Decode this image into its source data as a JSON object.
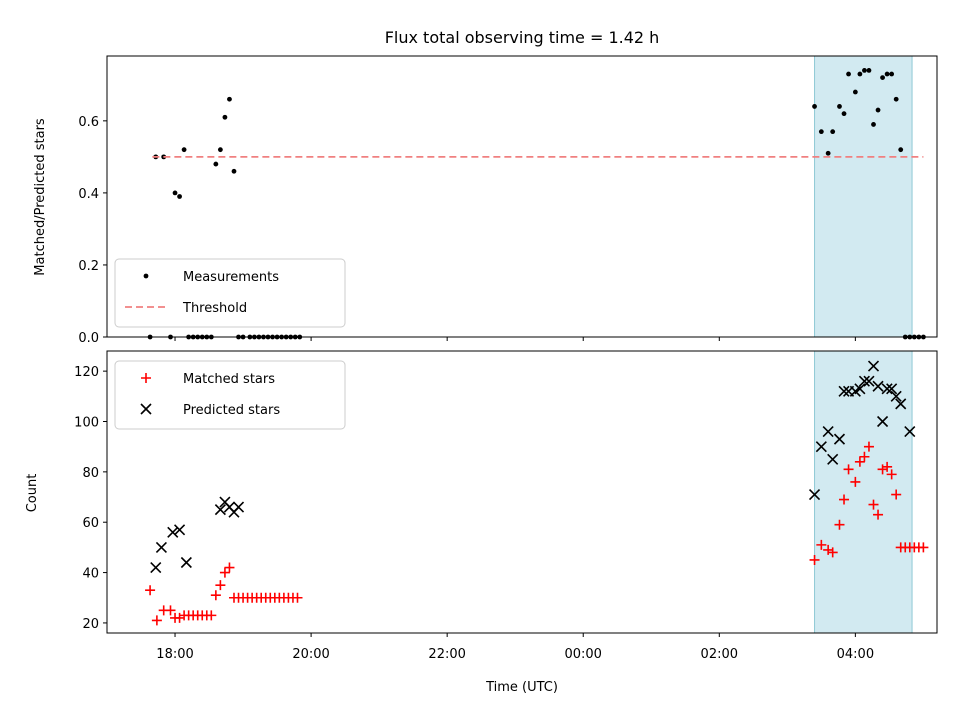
{
  "chart_data": [
    {
      "type": "scatter",
      "title": "Flux total observing time = 1.42 h",
      "ylabel": "Matched/Predicted stars",
      "xlabel": "",
      "ylim": [
        0,
        0.78
      ],
      "yticks": [
        0.0,
        0.2,
        0.4,
        0.6
      ],
      "ytick_labels": [
        "0.0",
        "0.2",
        "0.4",
        "0.6"
      ],
      "shaded_region": {
        "x": [
          "03:24",
          "04:50"
        ],
        "color": "#add8e6"
      },
      "legend": {
        "placement": "lower-left",
        "entries": [
          "Measurements",
          "Threshold"
        ]
      },
      "series": [
        {
          "name": "Measurements",
          "marker": "dot",
          "color": "#000000",
          "x": [
            "17:38",
            "17:43",
            "17:50",
            "17:56",
            "18:00",
            "18:04",
            "18:08",
            "18:12",
            "18:16",
            "18:20",
            "18:24",
            "18:28",
            "18:32",
            "18:36",
            "18:40",
            "18:44",
            "18:48",
            "18:52",
            "18:56",
            "19:00",
            "19:06",
            "19:10",
            "19:14",
            "19:18",
            "19:22",
            "19:26",
            "19:30",
            "19:34",
            "19:38",
            "19:42",
            "19:46",
            "19:50",
            "03:24",
            "03:30",
            "03:36",
            "03:40",
            "03:46",
            "03:50",
            "03:54",
            "04:00",
            "04:04",
            "04:08",
            "04:12",
            "04:16",
            "04:20",
            "04:24",
            "04:28",
            "04:32",
            "04:36",
            "04:40",
            "04:44",
            "04:48",
            "04:52",
            "04:56",
            "05:00"
          ],
          "y": [
            0.0,
            0.5,
            0.5,
            0.0,
            0.4,
            0.39,
            0.52,
            0.0,
            0.0,
            0.0,
            0.0,
            0.0,
            0.0,
            0.48,
            0.52,
            0.61,
            0.66,
            0.46,
            0.0,
            0.0,
            0.0,
            0.0,
            0.0,
            0.0,
            0.0,
            0.0,
            0.0,
            0.0,
            0.0,
            0.0,
            0.0,
            0.0,
            0.64,
            0.57,
            0.51,
            0.57,
            0.64,
            0.62,
            0.73,
            0.68,
            0.73,
            0.74,
            0.74,
            0.59,
            0.63,
            0.72,
            0.73,
            0.73,
            0.66,
            0.52,
            0.0,
            0.0,
            0.0,
            0.0,
            0.0
          ]
        },
        {
          "name": "Threshold",
          "line": "dashed",
          "color": "#f08080",
          "x": [
            "17:40",
            "05:00"
          ],
          "y": [
            0.5,
            0.5
          ]
        }
      ]
    },
    {
      "type": "scatter",
      "title": "",
      "ylabel": "Count",
      "xlabel": "Time (UTC)",
      "ylim": [
        16,
        128
      ],
      "yticks": [
        20,
        40,
        60,
        80,
        100,
        120
      ],
      "ytick_labels": [
        "20",
        "40",
        "60",
        "80",
        "100",
        "120"
      ],
      "xticks": [
        "18:00",
        "20:00",
        "22:00",
        "00:00",
        "02:00",
        "04:00"
      ],
      "shaded_region": {
        "x": [
          "03:24",
          "04:50"
        ],
        "color": "#add8e6"
      },
      "legend": {
        "placement": "upper-left",
        "entries": [
          "Matched stars",
          "Predicted stars"
        ]
      },
      "series": [
        {
          "name": "Matched stars",
          "marker": "plus",
          "color": "#ff0000",
          "x": [
            "17:38",
            "17:44",
            "17:50",
            "17:56",
            "18:00",
            "18:04",
            "18:08",
            "18:12",
            "18:16",
            "18:20",
            "18:24",
            "18:28",
            "18:32",
            "18:36",
            "18:40",
            "18:44",
            "18:48",
            "18:52",
            "18:56",
            "19:00",
            "19:04",
            "19:08",
            "19:12",
            "19:16",
            "19:20",
            "19:24",
            "19:28",
            "19:32",
            "19:36",
            "19:40",
            "19:44",
            "19:48",
            "03:24",
            "03:30",
            "03:36",
            "03:40",
            "03:46",
            "03:50",
            "03:54",
            "04:00",
            "04:04",
            "04:08",
            "04:12",
            "04:16",
            "04:20",
            "04:24",
            "04:28",
            "04:32",
            "04:36",
            "04:40",
            "04:44",
            "04:48",
            "04:52",
            "04:56",
            "05:00"
          ],
          "y": [
            33,
            21,
            25,
            25,
            22,
            22,
            23,
            23,
            23,
            23,
            23,
            23,
            23,
            31,
            35,
            40,
            42,
            30,
            30,
            30,
            30,
            30,
            30,
            30,
            30,
            30,
            30,
            30,
            30,
            30,
            30,
            30,
            45,
            51,
            49,
            48,
            59,
            69,
            81,
            76,
            84,
            86,
            90,
            67,
            63,
            81,
            82,
            79,
            71,
            50,
            50,
            50,
            50,
            50,
            50
          ]
        },
        {
          "name": "Predicted stars",
          "marker": "x",
          "color": "#000000",
          "x": [
            "17:43",
            "17:48",
            "17:58",
            "18:04",
            "18:10",
            "18:40",
            "18:44",
            "18:48",
            "18:52",
            "18:56",
            "03:24",
            "03:30",
            "03:36",
            "03:40",
            "03:46",
            "03:50",
            "03:54",
            "04:00",
            "04:04",
            "04:08",
            "04:12",
            "04:16",
            "04:20",
            "04:24",
            "04:28",
            "04:32",
            "04:36",
            "04:40"
          ],
          "y": [
            42,
            50,
            56,
            57,
            44,
            65,
            68,
            66,
            64,
            66,
            71,
            90,
            96,
            85,
            93,
            112,
            112,
            112,
            113,
            116,
            116,
            122,
            114,
            100,
            113,
            113,
            110,
            107
          ]
        },
        {
          "name": "Predicted stars",
          "marker": "x",
          "color": "#000000",
          "x": [
            "04:48"
          ],
          "y": [
            96
          ]
        }
      ]
    }
  ]
}
